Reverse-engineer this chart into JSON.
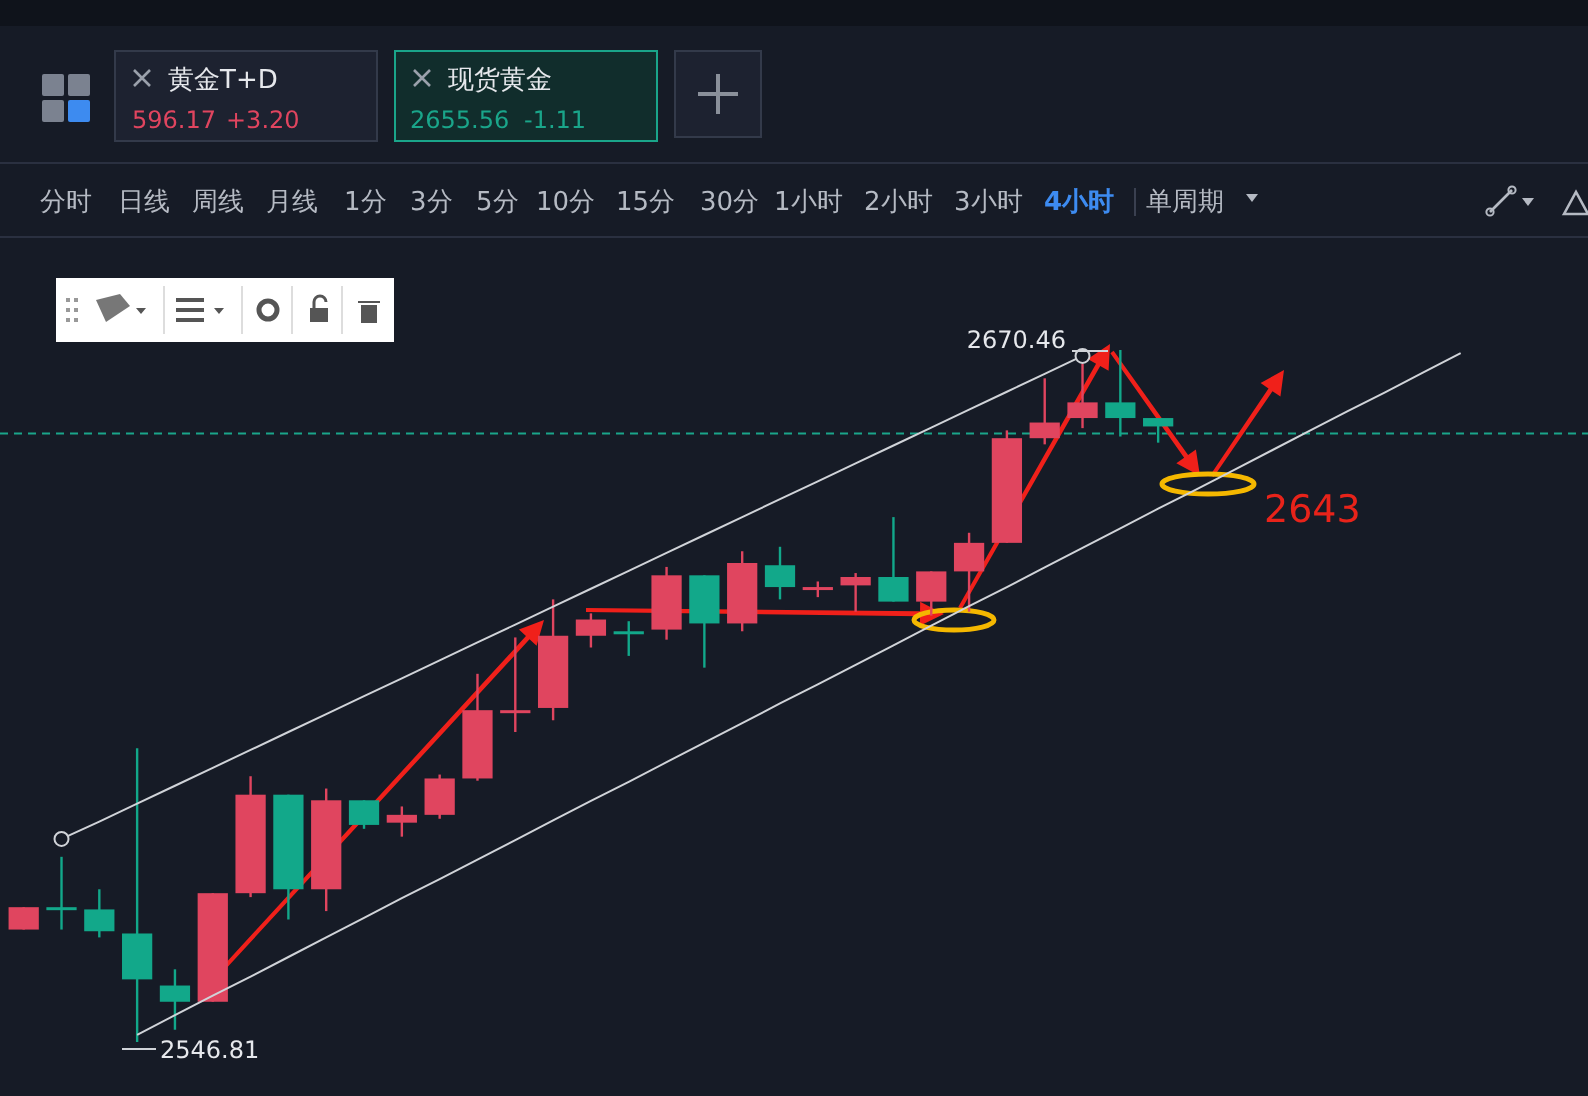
{
  "chart_data": {
    "type": "candlestick",
    "categories": [
      null,
      null,
      null,
      null,
      null,
      null,
      null,
      null,
      null,
      null,
      null,
      null,
      null,
      null,
      null,
      null,
      null,
      null,
      null,
      null,
      null,
      null,
      null,
      null,
      null,
      null,
      null,
      null,
      null,
      null,
      null,
      null,
      null,
      null,
      null,
      null,
      null,
      null,
      null,
      null,
      null
    ],
    "series": [
      {
        "type": "line",
        "color": "#d0d3d8",
        "values": [
          null,
          2583.1,
          2586.2,
          2589.4,
          2592.6,
          2595.8,
          2599.0,
          2602.2,
          2605.4,
          2608.6,
          2611.8,
          2615.0,
          2618.2,
          2621.4,
          2624.6,
          2627.8,
          2631.0,
          2634.2,
          2637.4,
          2640.6,
          2643.8,
          2647.0,
          2650.2,
          2653.4,
          2656.6,
          2659.8,
          2663.0,
          2666.2,
          2669.4,
          null,
          null,
          null,
          null,
          null,
          null,
          null,
          null,
          null,
          null,
          null,
          null
        ]
      },
      {
        "type": "line",
        "color": "#d0d3d8",
        "values": [
          null,
          null,
          null,
          2548.1,
          2551.6,
          2555.1,
          2558.5,
          2562.0,
          2565.5,
          2569.0,
          2572.5,
          2575.9,
          2579.4,
          2582.9,
          2586.4,
          2589.9,
          2593.3,
          2596.8,
          2600.3,
          2603.8,
          2607.3,
          2610.7,
          2614.2,
          2617.7,
          2621.2,
          2624.7,
          2628.1,
          2631.6,
          2635.1,
          2638.6,
          2642.1,
          2645.5,
          2649.0,
          2652.5,
          2656.0,
          2659.5,
          2662.9,
          2666.4,
          2669.9,
          null,
          null
        ]
      }
    ],
    "ohlc": [
      [
        2566.9,
        2570.9,
        2566.9,
        2570.9
      ],
      [
        2570.7,
        2579.9,
        2566.9,
        2570.9
      ],
      [
        2570.5,
        2574.1,
        2565.5,
        2566.6
      ],
      [
        2566.2,
        2599.3,
        2546.81,
        2558.0
      ],
      [
        2556.9,
        2559.8,
        2549.0,
        2554.0
      ],
      [
        2554.0,
        2573.4,
        2554.0,
        2573.4
      ],
      [
        2573.4,
        2594.3,
        2572.7,
        2591.0
      ],
      [
        2591.0,
        2591.0,
        2568.7,
        2574.1
      ],
      [
        2574.1,
        2592.1,
        2570.2,
        2590.0
      ],
      [
        2590.0,
        2590.0,
        2584.9,
        2585.6
      ],
      [
        2586.0,
        2588.9,
        2583.5,
        2587.4
      ],
      [
        2587.4,
        2594.6,
        2586.7,
        2593.9
      ],
      [
        2593.9,
        2612.6,
        2593.5,
        2606.1
      ],
      [
        2606.0,
        2619.1,
        2602.2,
        2606.1
      ],
      [
        2606.5,
        2625.9,
        2604.3,
        2619.4
      ],
      [
        2619.4,
        2623.4,
        2617.3,
        2622.3
      ],
      [
        2620.2,
        2622.0,
        2615.8,
        2620.0
      ],
      [
        2620.5,
        2631.7,
        2618.7,
        2630.2
      ],
      [
        2630.2,
        2630.2,
        2613.7,
        2621.6
      ],
      [
        2621.6,
        2634.5,
        2620.2,
        2632.4
      ],
      [
        2632.0,
        2635.3,
        2625.9,
        2628.1
      ],
      [
        2627.7,
        2629.1,
        2626.3,
        2628.1
      ],
      [
        2628.4,
        2630.6,
        2623.7,
        2629.9
      ],
      [
        2629.9,
        2640.6,
        2625.5,
        2625.5
      ],
      [
        2625.5,
        2630.9,
        2623.0,
        2630.9
      ],
      [
        2630.9,
        2637.8,
        2623.7,
        2636.0
      ],
      [
        2636.0,
        2656.1,
        2636.0,
        2654.7
      ],
      [
        2654.7,
        2665.4,
        2653.6,
        2657.5
      ],
      [
        2658.3,
        2668.0,
        2656.5,
        2661.1
      ],
      [
        2661.1,
        2670.46,
        2655.0,
        2658.3
      ],
      [
        2658.3,
        2658.3,
        2653.9,
        2656.8
      ],
      null,
      null,
      null,
      null,
      null,
      null,
      null,
      null,
      null,
      null
    ],
    "colors": [
      "#e0455f",
      "#12a88a",
      "#12a88a",
      "#12a88a",
      "#12a88a",
      "#e0455f",
      "#e0455f",
      "#12a88a",
      "#e0455f",
      "#12a88a",
      "#e0455f",
      "#e0455f",
      "#e0455f",
      "#e0455f",
      "#e0455f",
      "#e0455f",
      "#12a88a",
      "#e0455f",
      "#12a88a",
      "#e0455f",
      "#12a88a",
      "#e0455f",
      "#e0455f",
      "#12a88a",
      "#e0455f",
      "#e0455f",
      "#e0455f",
      "#e0455f",
      "#e0455f",
      "#12a88a",
      "#12a88a",
      null,
      null,
      null,
      null,
      null,
      null,
      null,
      null,
      null,
      null
    ],
    "ref_lines": [
      {
        "axis": "y",
        "value": 2655.56,
        "color": "#1aa58a",
        "line_style": "dashed"
      }
    ],
    "annotations": [
      "黄金T+D",
      "596.17",
      "+3.20",
      "现货黄金",
      "2655.56",
      "-1.11",
      "分时",
      "日线",
      "周线",
      "月线",
      "1分",
      "3分",
      "5分",
      "10分",
      "15分",
      "30分",
      "1小时",
      "2小时",
      "3小时",
      "4小时",
      "单周期",
      "2670.46",
      "2546.81",
      "2643"
    ]
  }
}
